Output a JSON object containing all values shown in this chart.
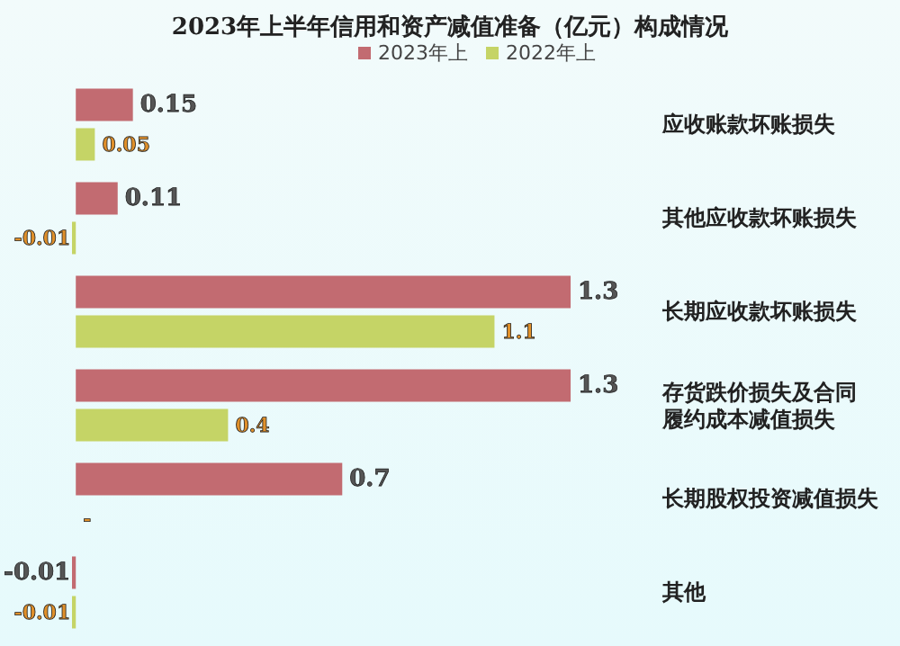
{
  "chart_data": {
    "type": "bar",
    "orientation": "horizontal",
    "title": "2023年上半年信用和资产减值准备（亿元）构成情况",
    "legend": "top",
    "categories": [
      "应收账款坏账损失",
      "其他应收款坏账损失",
      "长期应收款坏账损失",
      "存货跌价损失及合同履约成本减值损失",
      "长期股权投资减值损失",
      "其他"
    ],
    "series": [
      {
        "name": "2023年上",
        "color": "#c26b71",
        "values": [
          0.15,
          0.11,
          1.3,
          1.3,
          0.7,
          -0.01
        ],
        "value_labels": [
          "0.15",
          "0.11",
          "1.3",
          "1.3",
          "0.7",
          "-0.01"
        ]
      },
      {
        "name": "2022年上",
        "color": "#c5d466",
        "values": [
          0.05,
          -0.01,
          1.1,
          0.4,
          null,
          -0.01
        ],
        "value_labels": [
          "0.05",
          "-0.01",
          "1.1",
          "0.4",
          "-",
          "-0.01"
        ]
      }
    ]
  }
}
